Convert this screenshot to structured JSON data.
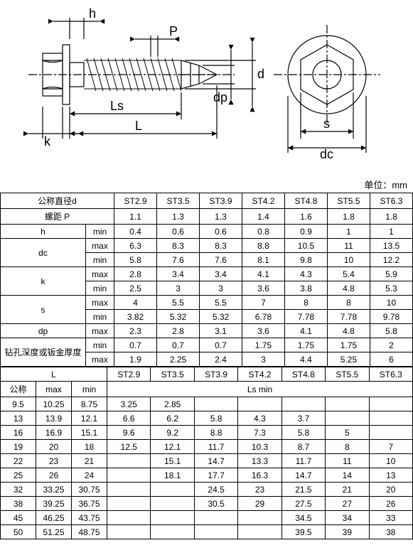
{
  "diagram": {
    "labels": {
      "h": "h",
      "P": "P",
      "d": "d",
      "dp": "dp",
      "Ls": "Ls",
      "L": "L",
      "k": "k",
      "s": "s",
      "dc": "dc"
    },
    "colors": {
      "stroke": "#000000",
      "centerline": "#000000",
      "fill": "#ffffff"
    }
  },
  "unit": "单位：mm",
  "headers": {
    "nominal_d": "公称直径d",
    "pitch_p": "螺距 P",
    "h": "h",
    "dc": "dc",
    "k": "k",
    "s": "s",
    "dp": "dp",
    "drill": "钻孔深度或钣金厚度",
    "L": "L",
    "nominal": "公称",
    "max": "max",
    "min": "min",
    "ls_min": "Ls min"
  },
  "sizes": [
    "ST2.9",
    "ST3.5",
    "ST3.9",
    "ST4.2",
    "ST4.8",
    "ST5.5",
    "ST6.3"
  ],
  "pitch": [
    "1.1",
    "1.3",
    "1.3",
    "1.4",
    "1.6",
    "1.8",
    "1.8"
  ],
  "h_min": [
    "0.4",
    "0.6",
    "0.6",
    "0.8",
    "0.9",
    "1",
    "1"
  ],
  "dc_max": [
    "6.3",
    "8.3",
    "8.3",
    "8.8",
    "10.5",
    "11",
    "13.5"
  ],
  "dc_min": [
    "5.8",
    "7.6",
    "7.6",
    "8.1",
    "9.8",
    "10",
    "12.2"
  ],
  "k_max": [
    "2.8",
    "3.4",
    "3.4",
    "4.1",
    "4.3",
    "5.4",
    "5.9"
  ],
  "k_min": [
    "2.5",
    "3",
    "3",
    "3.6",
    "3.8",
    "4.8",
    "5.3"
  ],
  "s_max": [
    "4",
    "5.5",
    "5.5",
    "7",
    "8",
    "8",
    "10"
  ],
  "s_min": [
    "3.82",
    "5.32",
    "5.32",
    "6.78",
    "7.78",
    "7.78",
    "9.78"
  ],
  "dp_max": [
    "2.3",
    "2.8",
    "3.1",
    "3.6",
    "4.1",
    "4.8",
    "5.8"
  ],
  "drill_min": [
    "0.7",
    "0.7",
    "0.7",
    "1.75",
    "1.75",
    "1.75",
    "2"
  ],
  "drill_max": [
    "1.9",
    "2.25",
    "2.4",
    "3",
    "4.4",
    "5.25",
    "6"
  ],
  "L_rows": [
    {
      "nom": "9.5",
      "max": "10.25",
      "min": "8.75",
      "ls": [
        "3.25",
        "2.85",
        "",
        "",
        "",
        "",
        ""
      ]
    },
    {
      "nom": "13",
      "max": "13.9",
      "min": "12.1",
      "ls": [
        "6.6",
        "6.2",
        "5.8",
        "4.3",
        "3.7",
        "",
        ""
      ]
    },
    {
      "nom": "16",
      "max": "16.9",
      "min": "15.1",
      "ls": [
        "9.6",
        "9.2",
        "8.8",
        "7.3",
        "5.8",
        "5",
        ""
      ]
    },
    {
      "nom": "19",
      "max": "20",
      "min": "18",
      "ls": [
        "12.5",
        "12.1",
        "11.7",
        "10.3",
        "8.7",
        "8",
        "7"
      ]
    },
    {
      "nom": "22",
      "max": "23",
      "min": "21",
      "ls": [
        "",
        "15.1",
        "14.7",
        "13.3",
        "11.7",
        "11",
        "10"
      ]
    },
    {
      "nom": "25",
      "max": "26",
      "min": "24",
      "ls": [
        "",
        "18.1",
        "17.7",
        "16.3",
        "14.7",
        "14",
        "13"
      ]
    },
    {
      "nom": "32",
      "max": "33.25",
      "min": "30.75",
      "ls": [
        "",
        "",
        "24.5",
        "23",
        "21.5",
        "21",
        "20"
      ]
    },
    {
      "nom": "38",
      "max": "39.25",
      "min": "36.75",
      "ls": [
        "",
        "",
        "30.5",
        "29",
        "27.5",
        "27",
        "26"
      ]
    },
    {
      "nom": "45",
      "max": "46.25",
      "min": "43.75",
      "ls": [
        "",
        "",
        "",
        "",
        "34.5",
        "34",
        "33"
      ]
    },
    {
      "nom": "50",
      "max": "51.25",
      "min": "48.75",
      "ls": [
        "",
        "",
        "",
        "",
        "39.5",
        "39",
        "38"
      ]
    }
  ]
}
